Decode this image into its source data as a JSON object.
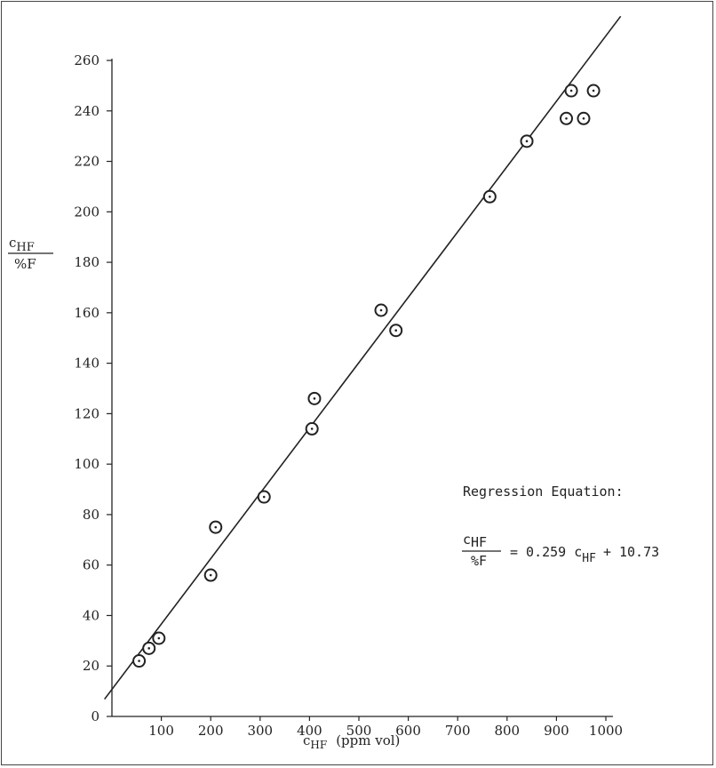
{
  "chart_data": {
    "type": "scatter",
    "xlabel_main": "c",
    "xlabel_sub": "HF",
    "xlabel_rest": "(ppm vol)",
    "ylabel_num_main": "c",
    "ylabel_num_sub": "HF",
    "ylabel_den": "%F",
    "xticks": [
      100,
      200,
      300,
      400,
      500,
      600,
      700,
      800,
      900,
      1000
    ],
    "yticks": [
      0,
      20,
      40,
      60,
      80,
      100,
      120,
      140,
      160,
      180,
      200,
      220,
      240,
      260
    ],
    "xlim": [
      0,
      1000
    ],
    "ylim": [
      0,
      260
    ],
    "points": [
      {
        "x": 55,
        "y": 22
      },
      {
        "x": 75,
        "y": 27
      },
      {
        "x": 95,
        "y": 31
      },
      {
        "x": 200,
        "y": 56
      },
      {
        "x": 210,
        "y": 75
      },
      {
        "x": 308,
        "y": 87
      },
      {
        "x": 405,
        "y": 114
      },
      {
        "x": 410,
        "y": 126
      },
      {
        "x": 545,
        "y": 161
      },
      {
        "x": 575,
        "y": 153
      },
      {
        "x": 765,
        "y": 206
      },
      {
        "x": 840,
        "y": 228
      },
      {
        "x": 920,
        "y": 237
      },
      {
        "x": 930,
        "y": 248
      },
      {
        "x": 955,
        "y": 237
      },
      {
        "x": 975,
        "y": 248
      }
    ],
    "fit": {
      "slope": 0.259,
      "intercept": 10.73
    },
    "annotation": {
      "title": "Regression Equation:",
      "num_main": "c",
      "num_sub": "HF",
      "den": "%F",
      "rhs_part1": "= 0.259 c",
      "rhs_sub": "HF",
      "rhs_part2": "+ 10.73"
    }
  }
}
